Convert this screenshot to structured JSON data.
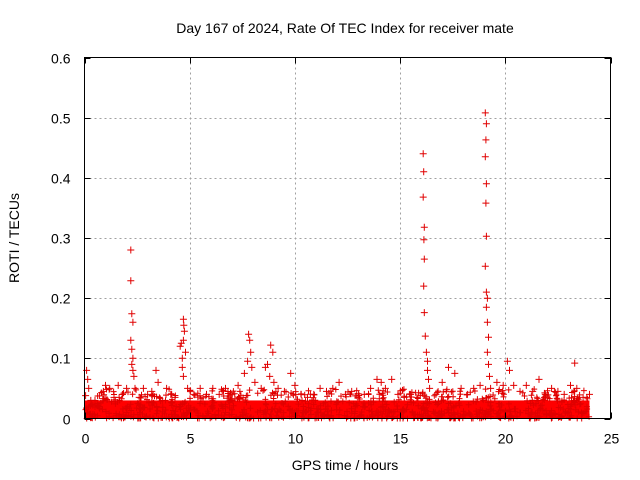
{
  "chart_data": {
    "type": "scatter",
    "title": "Day 167 of 2024, Rate Of TEC Index for receiver mate",
    "xlabel": "GPS time / hours",
    "ylabel": "ROTI / TECUs",
    "xlim": [
      0,
      25
    ],
    "ylim": [
      0,
      0.6
    ],
    "x_ticks": [
      0,
      5,
      10,
      15,
      20,
      25
    ],
    "x_tick_labels": [
      "0",
      "5",
      "10",
      "15",
      "20",
      "25"
    ],
    "y_ticks": [
      0,
      0.1,
      0.2,
      0.3,
      0.4,
      0.5,
      0.6
    ],
    "y_tick_labels": [
      "0",
      "0.1",
      "0.2",
      "0.3",
      "0.4",
      "0.5",
      "0.6"
    ],
    "grid": true,
    "marker": "plus",
    "color": "#e00000",
    "series": [
      {
        "name": "ROTI",
        "points": [
          [
            0.05,
            0.038
          ],
          [
            0.1,
            0.08
          ],
          [
            0.15,
            0.065
          ],
          [
            0.2,
            0.05
          ],
          [
            0.3,
            0.03
          ],
          [
            0.4,
            0.022
          ],
          [
            0.5,
            0.03
          ],
          [
            0.7,
            0.02
          ],
          [
            0.9,
            0.045
          ],
          [
            1.0,
            0.055
          ],
          [
            1.2,
            0.05
          ],
          [
            1.4,
            0.035
          ],
          [
            1.6,
            0.055
          ],
          [
            1.8,
            0.04
          ],
          [
            2.0,
            0.05
          ],
          [
            2.2,
            0.28
          ],
          [
            2.2,
            0.229
          ],
          [
            2.25,
            0.174
          ],
          [
            2.3,
            0.16
          ],
          [
            2.2,
            0.13
          ],
          [
            2.25,
            0.115
          ],
          [
            2.3,
            0.1
          ],
          [
            2.25,
            0.09
          ],
          [
            2.3,
            0.08
          ],
          [
            2.35,
            0.07
          ],
          [
            2.4,
            0.05
          ],
          [
            2.6,
            0.035
          ],
          [
            2.8,
            0.05
          ],
          [
            3.0,
            0.04
          ],
          [
            3.2,
            0.045
          ],
          [
            3.4,
            0.08
          ],
          [
            3.5,
            0.06
          ],
          [
            3.7,
            0.03
          ],
          [
            3.9,
            0.05
          ],
          [
            4.1,
            0.04
          ],
          [
            4.3,
            0.035
          ],
          [
            4.55,
            0.12
          ],
          [
            4.6,
            0.125
          ],
          [
            4.65,
            0.1
          ],
          [
            4.7,
            0.165
          ],
          [
            4.72,
            0.155
          ],
          [
            4.75,
            0.145
          ],
          [
            4.7,
            0.13
          ],
          [
            4.8,
            0.11
          ],
          [
            4.65,
            0.085
          ],
          [
            4.7,
            0.07
          ],
          [
            4.9,
            0.05
          ],
          [
            5.2,
            0.04
          ],
          [
            5.5,
            0.05
          ],
          [
            5.8,
            0.04
          ],
          [
            6.1,
            0.05
          ],
          [
            6.4,
            0.04
          ],
          [
            6.7,
            0.05
          ],
          [
            7.0,
            0.04
          ],
          [
            7.3,
            0.055
          ],
          [
            7.6,
            0.075
          ],
          [
            7.8,
            0.14
          ],
          [
            7.85,
            0.13
          ],
          [
            7.9,
            0.11
          ],
          [
            7.75,
            0.095
          ],
          [
            7.95,
            0.085
          ],
          [
            8.1,
            0.06
          ],
          [
            8.4,
            0.05
          ],
          [
            8.6,
            0.085
          ],
          [
            8.7,
            0.09
          ],
          [
            8.8,
            0.07
          ],
          [
            8.85,
            0.122
          ],
          [
            8.95,
            0.11
          ],
          [
            9.0,
            0.06
          ],
          [
            9.2,
            0.05
          ],
          [
            9.5,
            0.045
          ],
          [
            9.8,
            0.075
          ],
          [
            10.0,
            0.055
          ],
          [
            10.3,
            0.04
          ],
          [
            10.6,
            0.035
          ],
          [
            10.9,
            0.04
          ],
          [
            11.2,
            0.05
          ],
          [
            11.5,
            0.045
          ],
          [
            11.8,
            0.05
          ],
          [
            12.1,
            0.06
          ],
          [
            12.4,
            0.04
          ],
          [
            12.7,
            0.045
          ],
          [
            13.0,
            0.035
          ],
          [
            13.3,
            0.04
          ],
          [
            13.6,
            0.05
          ],
          [
            13.9,
            0.065
          ],
          [
            14.1,
            0.06
          ],
          [
            14.3,
            0.05
          ],
          [
            14.6,
            0.065
          ],
          [
            14.9,
            0.04
          ],
          [
            15.2,
            0.035
          ],
          [
            15.5,
            0.04
          ],
          [
            15.8,
            0.035
          ],
          [
            16.1,
            0.44
          ],
          [
            16.12,
            0.41
          ],
          [
            16.1,
            0.368
          ],
          [
            16.15,
            0.318
          ],
          [
            16.13,
            0.297
          ],
          [
            16.15,
            0.265
          ],
          [
            16.12,
            0.22
          ],
          [
            16.15,
            0.176
          ],
          [
            16.2,
            0.137
          ],
          [
            16.25,
            0.11
          ],
          [
            16.3,
            0.095
          ],
          [
            16.3,
            0.08
          ],
          [
            16.35,
            0.065
          ],
          [
            16.4,
            0.05
          ],
          [
            16.7,
            0.04
          ],
          [
            17.0,
            0.06
          ],
          [
            17.3,
            0.085
          ],
          [
            17.6,
            0.075
          ],
          [
            17.9,
            0.05
          ],
          [
            18.2,
            0.04
          ],
          [
            18.5,
            0.05
          ],
          [
            18.8,
            0.055
          ],
          [
            19.05,
            0.508
          ],
          [
            19.1,
            0.49
          ],
          [
            19.08,
            0.463
          ],
          [
            19.05,
            0.435
          ],
          [
            19.1,
            0.39
          ],
          [
            19.08,
            0.358
          ],
          [
            19.1,
            0.303
          ],
          [
            19.05,
            0.253
          ],
          [
            19.1,
            0.21
          ],
          [
            19.15,
            0.2
          ],
          [
            19.1,
            0.185
          ],
          [
            19.15,
            0.16
          ],
          [
            19.2,
            0.135
          ],
          [
            19.15,
            0.11
          ],
          [
            19.2,
            0.09
          ],
          [
            19.25,
            0.07
          ],
          [
            19.3,
            0.05
          ],
          [
            19.6,
            0.06
          ],
          [
            19.9,
            0.055
          ],
          [
            20.1,
            0.095
          ],
          [
            20.2,
            0.08
          ],
          [
            20.4,
            0.055
          ],
          [
            20.7,
            0.045
          ],
          [
            21.0,
            0.055
          ],
          [
            21.3,
            0.045
          ],
          [
            21.6,
            0.065
          ],
          [
            21.9,
            0.04
          ],
          [
            22.2,
            0.05
          ],
          [
            22.5,
            0.045
          ],
          [
            22.8,
            0.04
          ],
          [
            23.1,
            0.055
          ],
          [
            23.3,
            0.092
          ],
          [
            23.4,
            0.05
          ],
          [
            23.7,
            0.035
          ],
          [
            24.0,
            0.04
          ]
        ]
      }
    ],
    "band": {
      "name": "ROTI baseline scatter (dense band)",
      "x_start": 0,
      "x_end": 24,
      "y_min": 0.0,
      "y_max": 0.035
    }
  }
}
